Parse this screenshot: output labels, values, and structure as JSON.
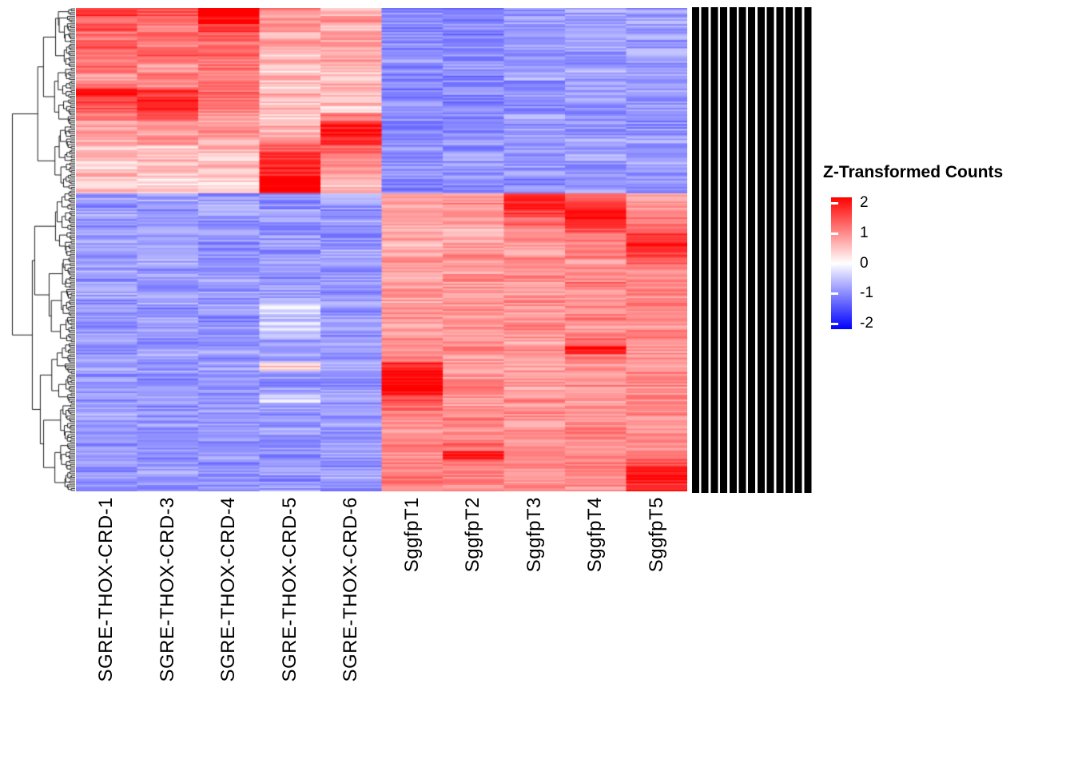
{
  "legend": {
    "title": "Z-Transformed Counts",
    "ticks": [
      "2",
      "1",
      "0",
      "-1",
      "-2"
    ]
  },
  "row_labels_area": {
    "description": "overplotted-illegible gene labels"
  },
  "chart_data": {
    "type": "heatmap",
    "title": "",
    "legend_title": "Z-Transformed Counts",
    "columns": [
      "SGRE-THOX-CRD-1",
      "SGRE-THOX-CRD-3",
      "SGRE-THOX-CRD-4",
      "SGRE-THOX-CRD-5",
      "SGRE-THOX-CRD-6",
      "SggfpT1",
      "SggfpT2",
      "SggfpT3",
      "SggfpT4",
      "SggfpT5"
    ],
    "row_dendrogram": true,
    "colorscale": {
      "min": -2,
      "mid": 0,
      "max": 2,
      "min_color": "#0000FF",
      "mid_color": "#FFFFFF",
      "max_color": "#FF0000",
      "ticks": [
        2,
        1,
        0,
        -1,
        -2
      ]
    },
    "values": [
      [
        1.6,
        1.3,
        2.0,
        0.9,
        0.6,
        -0.9,
        -1.0,
        -0.8,
        -0.7,
        -0.8
      ],
      [
        1.2,
        1.1,
        1.9,
        0.7,
        0.8,
        -0.9,
        -0.9,
        -0.8,
        -0.8,
        -0.7
      ],
      [
        1.4,
        1.0,
        1.6,
        0.8,
        0.5,
        -1.0,
        -0.9,
        -0.7,
        -0.8,
        -0.8
      ],
      [
        1.1,
        1.2,
        1.3,
        0.6,
        0.9,
        -0.8,
        -1.0,
        -0.9,
        -0.6,
        -0.7
      ],
      [
        1.3,
        0.9,
        1.1,
        0.8,
        0.7,
        -0.9,
        -0.8,
        -0.8,
        -0.7,
        -0.9
      ],
      [
        1.0,
        1.4,
        1.2,
        0.5,
        0.6,
        -1.0,
        -0.9,
        -0.8,
        -0.8,
        -0.6
      ],
      [
        0.9,
        1.1,
        1.0,
        0.7,
        0.8,
        -0.8,
        -0.9,
        -0.7,
        -0.9,
        -0.8
      ],
      [
        1.2,
        0.8,
        1.1,
        0.3,
        0.5,
        -0.9,
        -0.8,
        -0.8,
        -0.6,
        -0.9
      ],
      [
        0.8,
        1.0,
        0.9,
        0.6,
        0.4,
        -0.9,
        -1.0,
        -0.7,
        -0.8,
        -0.7
      ],
      [
        1.1,
        0.9,
        1.0,
        0.4,
        0.7,
        -0.8,
        -0.9,
        -0.9,
        -0.7,
        -0.8
      ],
      [
        1.8,
        1.6,
        1.2,
        0.6,
        0.5,
        -1.0,
        -0.9,
        -0.8,
        -0.8,
        -0.7
      ],
      [
        1.6,
        1.9,
        1.1,
        0.5,
        0.6,
        -0.9,
        -1.0,
        -0.8,
        -0.7,
        -0.8
      ],
      [
        1.4,
        1.7,
        1.0,
        0.7,
        0.4,
        -0.9,
        -0.8,
        -0.9,
        -0.8,
        -0.7
      ],
      [
        1.0,
        1.2,
        0.8,
        0.4,
        1.0,
        -0.8,
        -0.9,
        -0.7,
        -0.9,
        -0.8
      ],
      [
        0.7,
        0.9,
        0.8,
        0.6,
        1.7,
        -0.9,
        -0.8,
        -0.8,
        -0.7,
        -0.9
      ],
      [
        0.8,
        0.7,
        0.9,
        0.5,
        1.9,
        -1.0,
        -0.9,
        -0.7,
        -0.8,
        -0.8
      ],
      [
        0.6,
        0.8,
        0.7,
        0.9,
        1.6,
        -0.9,
        -0.8,
        -0.9,
        -0.7,
        -0.7
      ],
      [
        0.4,
        0.3,
        0.6,
        1.3,
        1.2,
        -0.8,
        -0.9,
        -0.8,
        -0.8,
        -0.9
      ],
      [
        0.5,
        0.6,
        0.4,
        1.6,
        0.9,
        -0.9,
        -0.7,
        -0.9,
        -0.7,
        -0.8
      ],
      [
        0.3,
        0.5,
        0.6,
        1.8,
        0.8,
        -0.9,
        -0.8,
        -0.8,
        -0.9,
        -0.7
      ],
      [
        0.6,
        0.4,
        0.5,
        1.7,
        0.7,
        -0.8,
        -0.9,
        -0.7,
        -0.8,
        -0.8
      ],
      [
        0.4,
        0.2,
        0.3,
        2.0,
        0.6,
        -0.9,
        -0.8,
        -0.9,
        -0.7,
        -0.9
      ],
      [
        0.5,
        0.4,
        0.4,
        2.0,
        0.5,
        -1.0,
        -0.9,
        -0.8,
        -0.8,
        -0.8
      ],
      [
        -0.8,
        -0.7,
        -0.9,
        -0.8,
        -0.6,
        0.6,
        0.8,
        1.6,
        1.3,
        0.7
      ],
      [
        -0.9,
        -0.8,
        -0.7,
        -0.9,
        -0.8,
        0.7,
        0.9,
        1.8,
        1.5,
        0.8
      ],
      [
        -0.7,
        -0.9,
        -0.8,
        -0.7,
        -0.9,
        0.8,
        0.7,
        1.5,
        1.7,
        0.9
      ],
      [
        -0.8,
        -0.8,
        -0.9,
        -0.8,
        -0.7,
        0.6,
        0.8,
        1.2,
        1.8,
        1.0
      ],
      [
        -0.9,
        -0.7,
        -0.8,
        -0.9,
        -0.8,
        0.7,
        0.6,
        1.0,
        1.4,
        1.2
      ],
      [
        -0.8,
        -0.9,
        -0.7,
        -0.8,
        -0.9,
        0.8,
        0.7,
        0.9,
        1.0,
        1.6
      ],
      [
        -0.7,
        -0.8,
        -0.9,
        -0.7,
        -0.8,
        0.6,
        0.8,
        0.8,
        0.9,
        1.8
      ],
      [
        -0.9,
        -0.8,
        -0.8,
        -0.9,
        -0.7,
        0.7,
        0.9,
        0.7,
        1.1,
        1.5
      ],
      [
        -0.8,
        -0.7,
        -0.9,
        -0.8,
        -0.8,
        0.9,
        0.8,
        0.9,
        0.8,
        1.2
      ],
      [
        -0.7,
        -0.9,
        -0.8,
        -0.7,
        -0.9,
        0.8,
        0.7,
        0.8,
        1.0,
        0.9
      ],
      [
        -0.9,
        -0.8,
        -0.7,
        -0.9,
        -0.8,
        0.7,
        0.9,
        0.9,
        0.9,
        1.0
      ],
      [
        -0.8,
        -0.9,
        -0.9,
        -0.8,
        -0.7,
        0.8,
        0.8,
        0.7,
        1.1,
        0.8
      ],
      [
        -0.7,
        -0.8,
        -0.8,
        -0.7,
        -0.9,
        0.9,
        0.7,
        0.8,
        0.9,
        0.9
      ],
      [
        -0.9,
        -0.7,
        -0.8,
        -0.4,
        -0.8,
        0.7,
        0.8,
        0.9,
        0.8,
        1.0
      ],
      [
        -0.8,
        -0.9,
        -0.7,
        -0.2,
        -0.9,
        0.8,
        0.9,
        0.7,
        0.9,
        0.8
      ],
      [
        -0.7,
        -0.8,
        -0.9,
        -0.5,
        -0.7,
        0.9,
        0.8,
        0.8,
        1.0,
        0.9
      ],
      [
        -0.9,
        -0.8,
        -0.8,
        -0.3,
        -0.8,
        0.7,
        0.9,
        0.9,
        0.8,
        0.8
      ],
      [
        -0.8,
        -0.7,
        -0.9,
        -0.6,
        -0.9,
        0.8,
        0.7,
        0.8,
        0.9,
        1.0
      ],
      [
        -0.7,
        -0.9,
        -0.8,
        -0.8,
        -0.7,
        0.9,
        0.8,
        0.7,
        1.2,
        0.9
      ],
      [
        -0.9,
        -0.8,
        -0.7,
        -0.9,
        -0.8,
        0.8,
        0.9,
        0.9,
        1.9,
        0.8
      ],
      [
        -0.8,
        -0.7,
        -0.9,
        -0.7,
        -0.9,
        0.9,
        0.8,
        0.8,
        1.0,
        0.9
      ],
      [
        -0.7,
        -0.9,
        -0.8,
        0.4,
        -0.7,
        1.7,
        0.9,
        0.7,
        0.8,
        0.8
      ],
      [
        -0.9,
        -0.8,
        -0.8,
        -0.8,
        -0.8,
        1.9,
        0.8,
        0.9,
        0.7,
        1.0
      ],
      [
        -0.8,
        -0.9,
        -0.7,
        -0.9,
        -0.9,
        2.0,
        0.9,
        0.8,
        0.9,
        0.9
      ],
      [
        -0.7,
        -0.8,
        -0.9,
        -0.7,
        -0.8,
        1.8,
        1.0,
        0.7,
        0.8,
        0.8
      ],
      [
        -0.9,
        -0.7,
        -0.8,
        -0.3,
        -0.7,
        1.4,
        0.9,
        0.9,
        0.7,
        0.9
      ],
      [
        -0.8,
        -0.9,
        -0.9,
        -0.8,
        -0.9,
        1.2,
        0.8,
        0.8,
        0.9,
        1.0
      ],
      [
        -0.7,
        -0.8,
        -0.7,
        -0.9,
        -0.8,
        1.0,
        0.9,
        0.9,
        0.8,
        0.9
      ],
      [
        -0.9,
        -0.8,
        -0.8,
        -0.8,
        -0.7,
        0.9,
        1.1,
        0.8,
        0.9,
        0.8
      ],
      [
        -0.8,
        -0.9,
        -0.7,
        -0.7,
        -0.9,
        0.8,
        0.9,
        0.9,
        1.0,
        0.9
      ],
      [
        -0.7,
        -0.7,
        -0.9,
        -0.9,
        -0.8,
        0.9,
        1.0,
        0.8,
        0.9,
        1.1
      ],
      [
        -0.9,
        -0.8,
        -0.8,
        -0.8,
        -0.7,
        1.0,
        1.2,
        0.9,
        0.8,
        0.9
      ],
      [
        -0.8,
        -0.9,
        -0.7,
        -0.9,
        -0.8,
        0.9,
        1.9,
        0.8,
        0.9,
        1.0
      ],
      [
        -0.7,
        -0.8,
        -0.9,
        -0.8,
        -0.9,
        1.0,
        1.1,
        0.9,
        1.0,
        1.4
      ],
      [
        -0.9,
        -0.7,
        -0.8,
        -0.7,
        -0.8,
        0.9,
        0.9,
        0.8,
        0.9,
        1.8
      ],
      [
        -0.8,
        -0.9,
        -0.8,
        -0.9,
        -0.7,
        1.1,
        1.0,
        0.9,
        0.8,
        1.9
      ],
      [
        -0.9,
        -0.8,
        -0.9,
        -0.8,
        -0.9,
        1.0,
        0.9,
        1.0,
        0.9,
        1.6
      ]
    ]
  }
}
